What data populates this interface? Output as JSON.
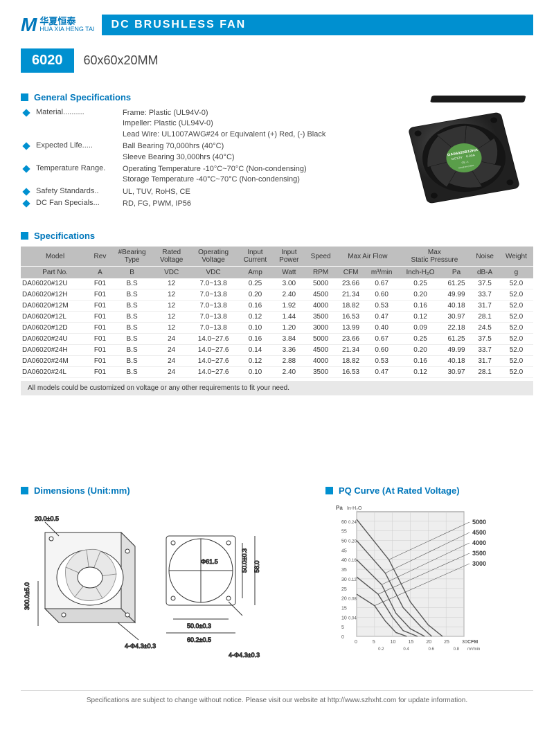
{
  "brand": {
    "cn": "华夏恒泰",
    "en": "HUA XIA HENG TAI"
  },
  "title": "DC BRUSHLESS FAN",
  "model": "6020",
  "dimensions": "60x60x20MM",
  "sections": {
    "general": "General Specifications",
    "specs": "Specifications",
    "dims": "Dimensions (Unit:mm)",
    "pq": "PQ Curve (At Rated Voltage)"
  },
  "general_specs": [
    {
      "label": "Material",
      "value": "Frame: Plastic (UL94V-0)\nImpeller: Plastic (UL94V-0)\nLead Wire: UL1007AWG#24 or Equivalent (+) Red, (-) Black"
    },
    {
      "label": "Expected Life",
      "value": "Ball Bearing 70,000hrs (40°C)\nSleeve Bearing 30,000hrs (40°C)"
    },
    {
      "label": "Temperature Range",
      "value": "Operating Temperature -10°C~70°C (Non-condensing)\nStorage Temperature -40°C~70°C (Non-condensing)"
    },
    {
      "label": "Safety Standards",
      "value": "UL, TUV, RoHS, CE"
    },
    {
      "label": "DC Fan Specials",
      "value": "RD, FG, PWM, IP56"
    }
  ],
  "fan_label": {
    "model": "DA06020B12HA",
    "voltage": "DC12V",
    "current": "0.20A"
  },
  "table": {
    "headers1": [
      "Model",
      "Rev",
      "#Bearing\nType",
      "Rated\nVoltage",
      "Operating\nVoltage",
      "Input\nCurrent",
      "Input\nPower",
      "Speed",
      "Max Air Flow",
      "",
      "Max\nStatic Pressure",
      "",
      "Noise",
      "Weight"
    ],
    "headers2": [
      "Part No.",
      "A",
      "B",
      "VDC",
      "VDC",
      "Amp",
      "Watt",
      "RPM",
      "CFM",
      "m³/min",
      "Inch-H₂O",
      "Pa",
      "dB-A",
      "g"
    ],
    "rows": [
      [
        "DA06020#12U",
        "F01",
        "B.S",
        "12",
        "7.0~13.8",
        "0.25",
        "3.00",
        "5000",
        "23.66",
        "0.67",
        "0.25",
        "61.25",
        "37.5",
        "52.0"
      ],
      [
        "DA06020#12H",
        "F01",
        "B.S",
        "12",
        "7.0~13.8",
        "0.20",
        "2.40",
        "4500",
        "21.34",
        "0.60",
        "0.20",
        "49.99",
        "33.7",
        "52.0"
      ],
      [
        "DA06020#12M",
        "F01",
        "B.S",
        "12",
        "7.0~13.8",
        "0.16",
        "1.92",
        "4000",
        "18.82",
        "0.53",
        "0.16",
        "40.18",
        "31.7",
        "52.0"
      ],
      [
        "DA06020#12L",
        "F01",
        "B.S",
        "12",
        "7.0~13.8",
        "0.12",
        "1.44",
        "3500",
        "16.53",
        "0.47",
        "0.12",
        "30.97",
        "28.1",
        "52.0"
      ],
      [
        "DA06020#12D",
        "F01",
        "B.S",
        "12",
        "7.0~13.8",
        "0.10",
        "1.20",
        "3000",
        "13.99",
        "0.40",
        "0.09",
        "22.18",
        "24.5",
        "52.0"
      ],
      [
        "DA06020#24U",
        "F01",
        "B.S",
        "24",
        "14.0~27.6",
        "0.16",
        "3.84",
        "5000",
        "23.66",
        "0.67",
        "0.25",
        "61.25",
        "37.5",
        "52.0"
      ],
      [
        "DA06020#24H",
        "F01",
        "B.S",
        "24",
        "14.0~27.6",
        "0.14",
        "3.36",
        "4500",
        "21.34",
        "0.60",
        "0.20",
        "49.99",
        "33.7",
        "52.0"
      ],
      [
        "DA06020#24M",
        "F01",
        "B.S",
        "24",
        "14.0~27.6",
        "0.12",
        "2.88",
        "4000",
        "18.82",
        "0.53",
        "0.16",
        "40.18",
        "31.7",
        "52.0"
      ],
      [
        "DA06020#24L",
        "F01",
        "B.S",
        "24",
        "14.0~27.6",
        "0.10",
        "2.40",
        "3500",
        "16.53",
        "0.47",
        "0.12",
        "30.97",
        "28.1",
        "52.0"
      ]
    ],
    "note": "All models could be customized on voltage or any other requirements to fit your need."
  },
  "dim_labels": {
    "depth": "20.0±0.5",
    "wire": "300.0±5.0",
    "hole_dia": "Φ61.5",
    "h1": "50.0±0.3",
    "h2": "58.0",
    "w1": "50.0±0.3",
    "w2": "60.2±0.5",
    "holes": "4-Φ4.3±0.3"
  },
  "pq": {
    "bg": "#eeeeee",
    "grid": "#cccccc",
    "line": "#555555",
    "y_pa_label": "Pa",
    "y_in_label": "In-H₂O",
    "y_pa_ticks": [
      0,
      5,
      10,
      15,
      20,
      25,
      30,
      35,
      40,
      45,
      50,
      55,
      60
    ],
    "y_in_ticks": [
      "0.04",
      "0.08",
      "0.12",
      "0.16",
      "0.20",
      "0.24"
    ],
    "x_cfm_label": "CFM",
    "x_m3_label": "m³/min",
    "x_cfm_ticks": [
      0,
      5,
      10,
      15,
      20,
      25,
      30
    ],
    "x_m3_ticks": [
      "0.2",
      "0.4",
      "0.6",
      "0.8"
    ],
    "series_labels": [
      "5000",
      "4500",
      "4000",
      "3500",
      "3000"
    ],
    "curves": [
      [
        [
          0,
          61
        ],
        [
          9,
          40
        ],
        [
          15,
          18
        ],
        [
          20,
          6
        ],
        [
          24,
          0
        ]
      ],
      [
        [
          0,
          50
        ],
        [
          8,
          33
        ],
        [
          13,
          15
        ],
        [
          18,
          5
        ],
        [
          21,
          0
        ]
      ],
      [
        [
          0,
          40
        ],
        [
          7,
          27
        ],
        [
          11,
          12
        ],
        [
          15,
          4
        ],
        [
          19,
          0
        ]
      ],
      [
        [
          0,
          31
        ],
        [
          6,
          22
        ],
        [
          10,
          10
        ],
        [
          13,
          3
        ],
        [
          17,
          0
        ]
      ],
      [
        [
          0,
          22
        ],
        [
          5,
          16
        ],
        [
          8,
          8
        ],
        [
          11,
          2
        ],
        [
          14,
          0
        ]
      ]
    ]
  },
  "footer": "Specifications are subject to change without notice. Please visit our website at http://www.szhxht.com for update information.",
  "colors": {
    "accent": "#0090d0",
    "blue": "#0077bb",
    "header_bg": "#bfbfbf"
  }
}
